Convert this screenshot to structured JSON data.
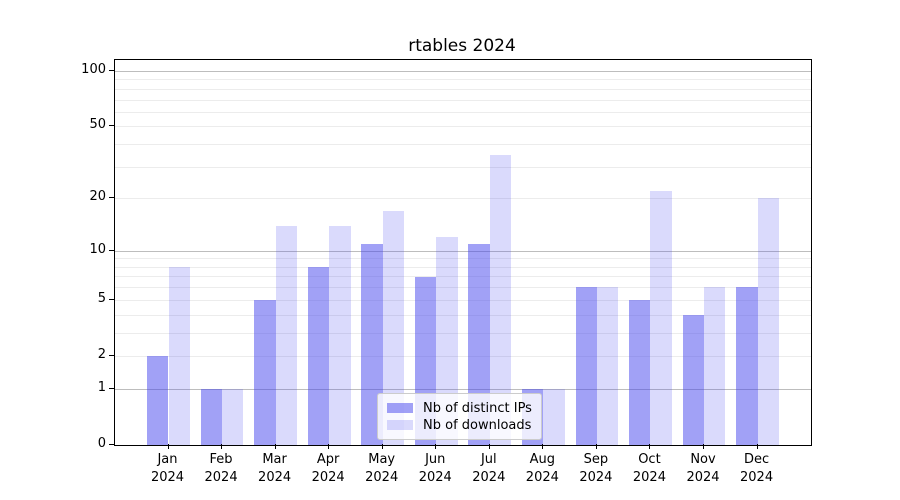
{
  "chart_data": {
    "type": "bar",
    "title": "rtables 2024",
    "categories": [
      "Jan",
      "Feb",
      "Mar",
      "Apr",
      "May",
      "Jun",
      "Jul",
      "Aug",
      "Sep",
      "Oct",
      "Nov",
      "Dec"
    ],
    "category_year": "2024",
    "series": [
      {
        "name": "Nb of distinct IPs",
        "color": "rgba(68,68,238,0.5)",
        "values": [
          2,
          1,
          5,
          8,
          11,
          7,
          11,
          1,
          6,
          5,
          4,
          6
        ]
      },
      {
        "name": "Nb of downloads",
        "color": "rgba(68,68,238,0.2)",
        "values": [
          8,
          1,
          14,
          14,
          17,
          12,
          35,
          1,
          6,
          22,
          6,
          20
        ]
      }
    ],
    "xlabel": "",
    "ylabel": "",
    "yscale": "log1p",
    "ylim": [
      0,
      115
    ],
    "yticks": [
      0,
      1,
      2,
      5,
      10,
      20,
      50,
      100
    ],
    "grid": {
      "major_lines": [
        1,
        10,
        100
      ],
      "minor_lines": [
        2,
        3,
        4,
        5,
        6,
        7,
        8,
        9,
        20,
        30,
        40,
        50,
        60,
        70,
        80,
        90
      ]
    },
    "legend_position": "lower center"
  }
}
